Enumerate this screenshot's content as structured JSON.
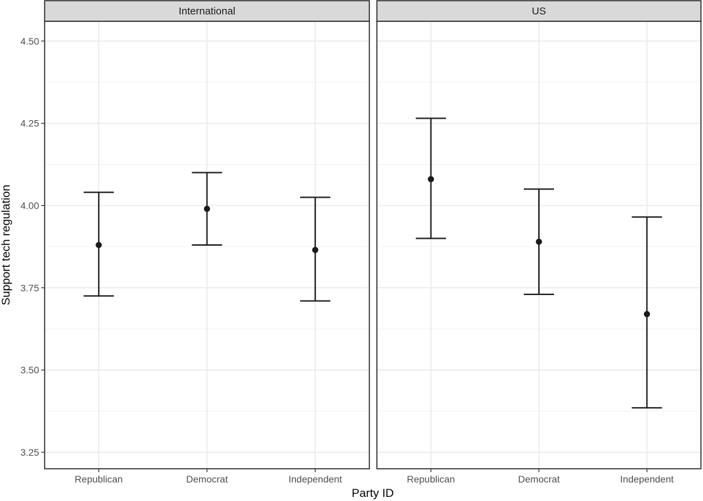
{
  "chart_data": {
    "type": "errorbar",
    "xlabel": "Party ID",
    "ylabel": "Support tech regulation",
    "categories": [
      "Republican",
      "Democrat",
      "Independent"
    ],
    "ylim": [
      3.2,
      4.56
    ],
    "yticks": [
      3.25,
      3.5,
      3.75,
      4.0,
      4.25,
      4.5
    ],
    "ytick_labels": [
      "3.25",
      "3.50",
      "3.75",
      "4.00",
      "4.25",
      "4.50"
    ],
    "grid": true,
    "panels": [
      {
        "name": "International",
        "points": [
          {
            "category": "Republican",
            "estimate": 3.88,
            "lower": 3.725,
            "upper": 4.04
          },
          {
            "category": "Democrat",
            "estimate": 3.99,
            "lower": 3.88,
            "upper": 4.1
          },
          {
            "category": "Independent",
            "estimate": 3.865,
            "lower": 3.71,
            "upper": 4.025
          }
        ]
      },
      {
        "name": "US",
        "points": [
          {
            "category": "Republican",
            "estimate": 4.08,
            "lower": 3.9,
            "upper": 4.265
          },
          {
            "category": "Democrat",
            "estimate": 3.89,
            "lower": 3.73,
            "upper": 4.05
          },
          {
            "category": "Independent",
            "estimate": 3.67,
            "lower": 3.385,
            "upper": 3.965
          }
        ]
      }
    ]
  }
}
